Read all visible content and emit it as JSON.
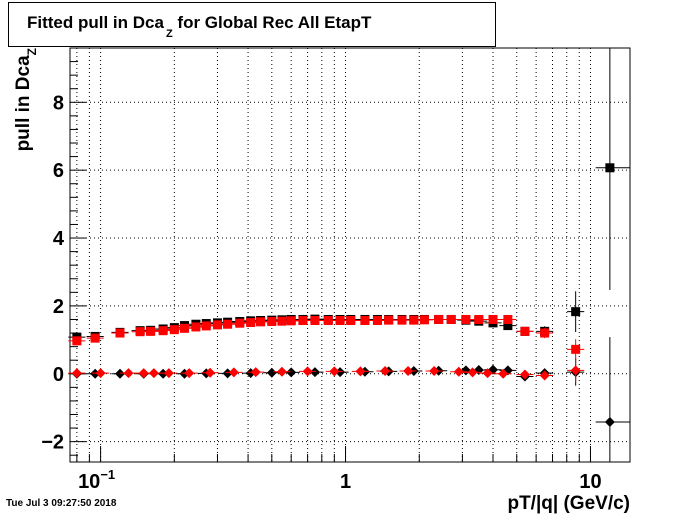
{
  "title": {
    "main": "Fitted pull in Dca",
    "sub": "Z",
    "rest": " for Global Rec All EtapT"
  },
  "timestamp": "Tue Jul  3 09:27:50 2018",
  "chart_data": {
    "type": "scatter",
    "title": "Fitted pull in Dca_Z for Global Rec All EtapT",
    "xlabel": "pT/|q| (GeV/c)",
    "ylabel_main": "pull in Dca",
    "ylabel_sub": "Z",
    "xscale": "log",
    "xlim": [
      0.075,
      14.5
    ],
    "ylim": [
      -2.6,
      9.6
    ],
    "grid": true,
    "x_ticks": [
      {
        "value": 0.1,
        "base": "10",
        "exp": "−1"
      },
      {
        "value": 1,
        "base": "1",
        "exp": ""
      },
      {
        "value": 10,
        "base": "10",
        "exp": ""
      }
    ],
    "y_ticks": [
      {
        "value": -2,
        "label": "−2"
      },
      {
        "value": 0,
        "label": "0"
      },
      {
        "value": 2,
        "label": "2"
      },
      {
        "value": 4,
        "label": "4"
      },
      {
        "value": 6,
        "label": "6"
      },
      {
        "value": 8,
        "label": "8"
      }
    ],
    "series": [
      {
        "marker": "square",
        "color": "#000000",
        "points": [
          {
            "x": 0.08,
            "y": 1.08,
            "err": 0.02
          },
          {
            "x": 0.095,
            "y": 1.1,
            "err": 0.02
          },
          {
            "x": 0.12,
            "y": 1.22,
            "err": 0.02
          },
          {
            "x": 0.145,
            "y": 1.27,
            "err": 0.02
          },
          {
            "x": 0.16,
            "y": 1.28,
            "err": 0.02
          },
          {
            "x": 0.18,
            "y": 1.32,
            "err": 0.02
          },
          {
            "x": 0.2,
            "y": 1.36,
            "err": 0.02
          },
          {
            "x": 0.22,
            "y": 1.42,
            "err": 0.02
          },
          {
            "x": 0.245,
            "y": 1.46,
            "err": 0.02
          },
          {
            "x": 0.27,
            "y": 1.48,
            "err": 0.02
          },
          {
            "x": 0.3,
            "y": 1.5,
            "err": 0.02
          },
          {
            "x": 0.33,
            "y": 1.52,
            "err": 0.02
          },
          {
            "x": 0.37,
            "y": 1.54,
            "err": 0.02
          },
          {
            "x": 0.41,
            "y": 1.56,
            "err": 0.02
          },
          {
            "x": 0.45,
            "y": 1.57,
            "err": 0.02
          },
          {
            "x": 0.5,
            "y": 1.58,
            "err": 0.02
          },
          {
            "x": 0.55,
            "y": 1.59,
            "err": 0.02
          },
          {
            "x": 0.6,
            "y": 1.6,
            "err": 0.02
          },
          {
            "x": 0.67,
            "y": 1.6,
            "err": 0.02
          },
          {
            "x": 0.75,
            "y": 1.61,
            "err": 0.02
          },
          {
            "x": 0.85,
            "y": 1.6,
            "err": 0.02
          },
          {
            "x": 0.95,
            "y": 1.6,
            "err": 0.02
          },
          {
            "x": 1.05,
            "y": 1.6,
            "err": 0.02
          },
          {
            "x": 1.2,
            "y": 1.6,
            "err": 0.02
          },
          {
            "x": 1.35,
            "y": 1.6,
            "err": 0.02
          },
          {
            "x": 1.5,
            "y": 1.6,
            "err": 0.02
          },
          {
            "x": 1.7,
            "y": 1.6,
            "err": 0.02
          },
          {
            "x": 1.9,
            "y": 1.6,
            "err": 0.02
          },
          {
            "x": 2.1,
            "y": 1.6,
            "err": 0.02
          },
          {
            "x": 2.4,
            "y": 1.6,
            "err": 0.02
          },
          {
            "x": 2.7,
            "y": 1.6,
            "err": 0.03
          },
          {
            "x": 3.1,
            "y": 1.58,
            "err": 0.03
          },
          {
            "x": 3.5,
            "y": 1.55,
            "err": 0.04
          },
          {
            "x": 4.0,
            "y": 1.5,
            "err": 0.05
          },
          {
            "x": 4.6,
            "y": 1.42,
            "err": 0.06
          },
          {
            "x": 5.4,
            "y": 1.25,
            "err": 0.08
          },
          {
            "x": 6.5,
            "y": 1.25,
            "err": 0.15
          },
          {
            "x": 8.7,
            "y": 1.83,
            "err": 0.6
          },
          {
            "x": 12.0,
            "y": 6.07,
            "err": 3.6
          }
        ]
      },
      {
        "marker": "square",
        "color": "#ff0000",
        "points": [
          {
            "x": 0.08,
            "y": 0.97,
            "err": 0.02
          },
          {
            "x": 0.095,
            "y": 1.05,
            "err": 0.02
          },
          {
            "x": 0.12,
            "y": 1.2,
            "err": 0.02
          },
          {
            "x": 0.145,
            "y": 1.24,
            "err": 0.02
          },
          {
            "x": 0.16,
            "y": 1.25,
            "err": 0.02
          },
          {
            "x": 0.18,
            "y": 1.27,
            "err": 0.02
          },
          {
            "x": 0.2,
            "y": 1.3,
            "err": 0.02
          },
          {
            "x": 0.22,
            "y": 1.34,
            "err": 0.02
          },
          {
            "x": 0.245,
            "y": 1.38,
            "err": 0.02
          },
          {
            "x": 0.27,
            "y": 1.41,
            "err": 0.02
          },
          {
            "x": 0.3,
            "y": 1.44,
            "err": 0.02
          },
          {
            "x": 0.33,
            "y": 1.46,
            "err": 0.02
          },
          {
            "x": 0.37,
            "y": 1.49,
            "err": 0.02
          },
          {
            "x": 0.41,
            "y": 1.51,
            "err": 0.02
          },
          {
            "x": 0.45,
            "y": 1.53,
            "err": 0.02
          },
          {
            "x": 0.5,
            "y": 1.54,
            "err": 0.02
          },
          {
            "x": 0.55,
            "y": 1.55,
            "err": 0.02
          },
          {
            "x": 0.6,
            "y": 1.56,
            "err": 0.02
          },
          {
            "x": 0.67,
            "y": 1.57,
            "err": 0.02
          },
          {
            "x": 0.75,
            "y": 1.57,
            "err": 0.02
          },
          {
            "x": 0.85,
            "y": 1.57,
            "err": 0.02
          },
          {
            "x": 0.95,
            "y": 1.57,
            "err": 0.02
          },
          {
            "x": 1.05,
            "y": 1.57,
            "err": 0.02
          },
          {
            "x": 1.2,
            "y": 1.57,
            "err": 0.02
          },
          {
            "x": 1.35,
            "y": 1.57,
            "err": 0.02
          },
          {
            "x": 1.5,
            "y": 1.58,
            "err": 0.02
          },
          {
            "x": 1.7,
            "y": 1.58,
            "err": 0.02
          },
          {
            "x": 1.9,
            "y": 1.58,
            "err": 0.02
          },
          {
            "x": 2.1,
            "y": 1.59,
            "err": 0.02
          },
          {
            "x": 2.4,
            "y": 1.6,
            "err": 0.02
          },
          {
            "x": 2.7,
            "y": 1.6,
            "err": 0.03
          },
          {
            "x": 3.1,
            "y": 1.6,
            "err": 0.03
          },
          {
            "x": 3.5,
            "y": 1.6,
            "err": 0.04
          },
          {
            "x": 4.0,
            "y": 1.6,
            "err": 0.05
          },
          {
            "x": 4.6,
            "y": 1.6,
            "err": 0.06
          },
          {
            "x": 5.4,
            "y": 1.25,
            "err": 0.08
          },
          {
            "x": 6.5,
            "y": 1.2,
            "err": 0.15
          },
          {
            "x": 8.7,
            "y": 0.72,
            "err": 0.3
          }
        ]
      },
      {
        "marker": "diamond",
        "color": "#000000",
        "points": [
          {
            "x": 0.08,
            "y": 0.0,
            "err": 0.02
          },
          {
            "x": 0.095,
            "y": 0.0,
            "err": 0.02
          },
          {
            "x": 0.12,
            "y": 0.0,
            "err": 0.02
          },
          {
            "x": 0.15,
            "y": 0.0,
            "err": 0.02
          },
          {
            "x": 0.18,
            "y": 0.0,
            "err": 0.02
          },
          {
            "x": 0.22,
            "y": 0.0,
            "err": 0.02
          },
          {
            "x": 0.27,
            "y": 0.01,
            "err": 0.02
          },
          {
            "x": 0.33,
            "y": 0.01,
            "err": 0.02
          },
          {
            "x": 0.41,
            "y": 0.02,
            "err": 0.02
          },
          {
            "x": 0.5,
            "y": 0.03,
            "err": 0.02
          },
          {
            "x": 0.6,
            "y": 0.04,
            "err": 0.02
          },
          {
            "x": 0.75,
            "y": 0.05,
            "err": 0.02
          },
          {
            "x": 0.95,
            "y": 0.05,
            "err": 0.02
          },
          {
            "x": 1.2,
            "y": 0.06,
            "err": 0.02
          },
          {
            "x": 1.5,
            "y": 0.07,
            "err": 0.02
          },
          {
            "x": 1.9,
            "y": 0.08,
            "err": 0.02
          },
          {
            "x": 2.4,
            "y": 0.09,
            "err": 0.03
          },
          {
            "x": 3.1,
            "y": 0.1,
            "err": 0.03
          },
          {
            "x": 3.5,
            "y": 0.11,
            "err": 0.04
          },
          {
            "x": 4.0,
            "y": 0.12,
            "err": 0.05
          },
          {
            "x": 4.6,
            "y": 0.1,
            "err": 0.06
          },
          {
            "x": 5.4,
            "y": -0.08,
            "err": 0.08
          },
          {
            "x": 6.5,
            "y": 0.02,
            "err": 0.12
          },
          {
            "x": 8.7,
            "y": 0.05,
            "err": 0.4
          },
          {
            "x": 12.0,
            "y": -1.42,
            "err": 2.5
          }
        ]
      },
      {
        "marker": "diamond",
        "color": "#ff0000",
        "points": [
          {
            "x": 0.08,
            "y": 0.02,
            "err": 0.02
          },
          {
            "x": 0.1,
            "y": 0.02,
            "err": 0.02
          },
          {
            "x": 0.13,
            "y": 0.02,
            "err": 0.02
          },
          {
            "x": 0.15,
            "y": 0.02,
            "err": 0.02
          },
          {
            "x": 0.165,
            "y": 0.02,
            "err": 0.02
          },
          {
            "x": 0.19,
            "y": 0.02,
            "err": 0.02
          },
          {
            "x": 0.23,
            "y": 0.02,
            "err": 0.02
          },
          {
            "x": 0.28,
            "y": 0.03,
            "err": 0.02
          },
          {
            "x": 0.35,
            "y": 0.04,
            "err": 0.02
          },
          {
            "x": 0.43,
            "y": 0.05,
            "err": 0.02
          },
          {
            "x": 0.55,
            "y": 0.06,
            "err": 0.02
          },
          {
            "x": 0.7,
            "y": 0.07,
            "err": 0.02
          },
          {
            "x": 0.9,
            "y": 0.07,
            "err": 0.02
          },
          {
            "x": 1.15,
            "y": 0.07,
            "err": 0.02
          },
          {
            "x": 1.45,
            "y": 0.08,
            "err": 0.02
          },
          {
            "x": 1.8,
            "y": 0.08,
            "err": 0.02
          },
          {
            "x": 2.3,
            "y": 0.08,
            "err": 0.03
          },
          {
            "x": 2.9,
            "y": 0.06,
            "err": 0.03
          },
          {
            "x": 3.3,
            "y": 0.04,
            "err": 0.04
          },
          {
            "x": 3.8,
            "y": 0.02,
            "err": 0.05
          },
          {
            "x": 4.4,
            "y": 0.0,
            "err": 0.06
          },
          {
            "x": 5.4,
            "y": -0.02,
            "err": 0.08
          },
          {
            "x": 6.5,
            "y": -0.05,
            "err": 0.12
          },
          {
            "x": 8.7,
            "y": 0.1,
            "err": 0.35
          }
        ]
      }
    ]
  }
}
